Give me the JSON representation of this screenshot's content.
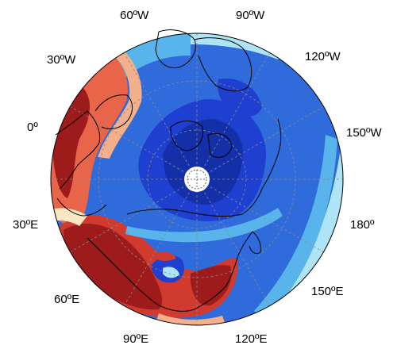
{
  "map": {
    "projection": "north-polar stereographic",
    "graticule": "dashed",
    "colors": {
      "dark_red": "#9e1b1b",
      "red": "#d13a2e",
      "orange_red": "#e8654a",
      "peach": "#f4b08a",
      "cream": "#f9e6c4",
      "light_cyan": "#aee4f5",
      "sky": "#58b4ea",
      "blue": "#2d6fe0",
      "mid_blue": "#2f6bdb",
      "dark_blue": "#1e3fcf",
      "navy": "#1430a8"
    },
    "longitude_labels": [
      {
        "id": "60w",
        "text": "60ºW"
      },
      {
        "id": "90w",
        "text": "90ºW"
      },
      {
        "id": "120w",
        "text": "120ºW"
      },
      {
        "id": "30w",
        "text": "30ºW"
      },
      {
        "id": "0",
        "text": "0º"
      },
      {
        "id": "150w",
        "text": "150ºW"
      },
      {
        "id": "30e",
        "text": "30ºE"
      },
      {
        "id": "180",
        "text": "180º"
      },
      {
        "id": "60e",
        "text": "60ºE"
      },
      {
        "id": "150e",
        "text": "150ºE"
      },
      {
        "id": "90e",
        "text": "90ºE"
      },
      {
        "id": "120e",
        "text": "120ºE"
      }
    ]
  }
}
